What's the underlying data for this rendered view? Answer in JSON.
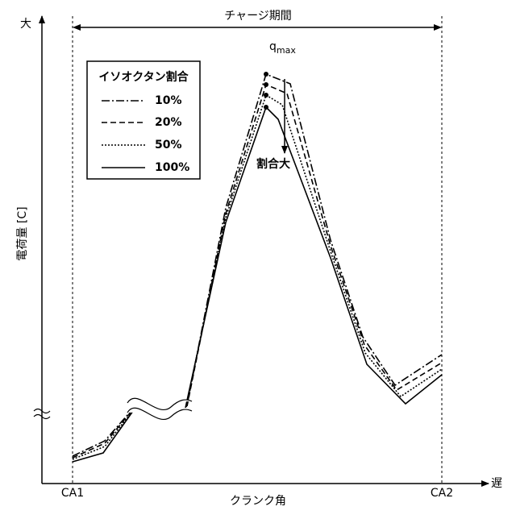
{
  "axes": {
    "y_top": "大",
    "y_label": "電荷量 [C]",
    "x_right": "遅",
    "x_label": "クランク角",
    "x_start": "CA1",
    "x_end": "CA2"
  },
  "period_label": "チャージ期間",
  "peak_label": {
    "main": "q",
    "sub": "max"
  },
  "legend": {
    "title": "イソオクタン割合",
    "entries": [
      "10%",
      "20%",
      "50%",
      "100%"
    ]
  },
  "trend_label": "割合大"
}
